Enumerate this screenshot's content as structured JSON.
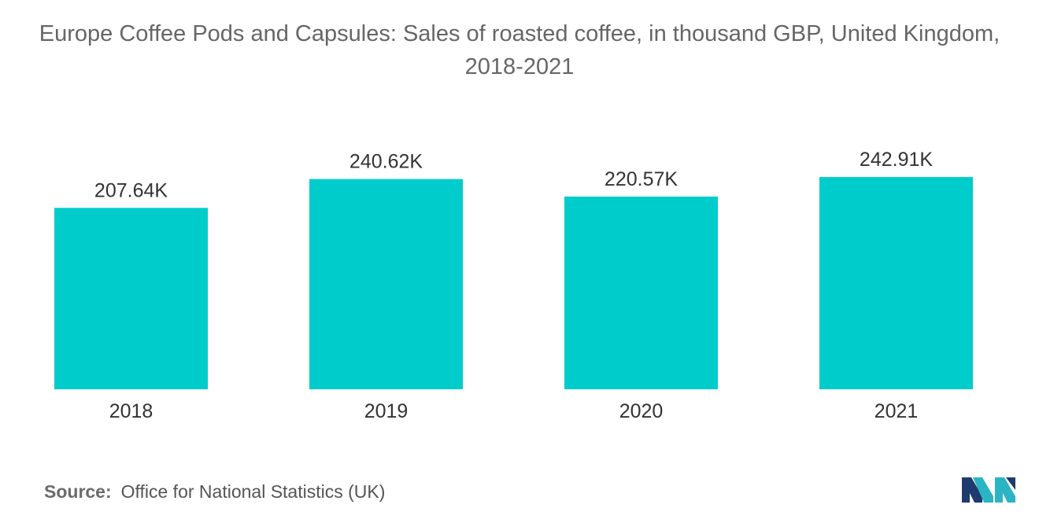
{
  "chart_data": {
    "type": "bar",
    "title": "Europe Coffee Pods and Capsules: Sales of roasted coffee, in thousand GBP, United Kingdom, 2018-2021",
    "categories": [
      "2018",
      "2019",
      "2020",
      "2021"
    ],
    "values": [
      207.64,
      240.62,
      220.57,
      242.91
    ],
    "data_labels": [
      "207.64K",
      "240.62K",
      "220.57K",
      "242.91K"
    ],
    "xlabel": "",
    "ylabel": "",
    "ylim": [
      0,
      270
    ],
    "grid": false,
    "legend": "none",
    "bar_color": "#00cccc"
  },
  "source": {
    "label": "Source:",
    "text": "Office for National Statistics (UK)"
  },
  "logo": {
    "icon": "mordor-intelligence-logo-icon",
    "colors": [
      "#1e3a6e",
      "#2bb5c4"
    ]
  }
}
